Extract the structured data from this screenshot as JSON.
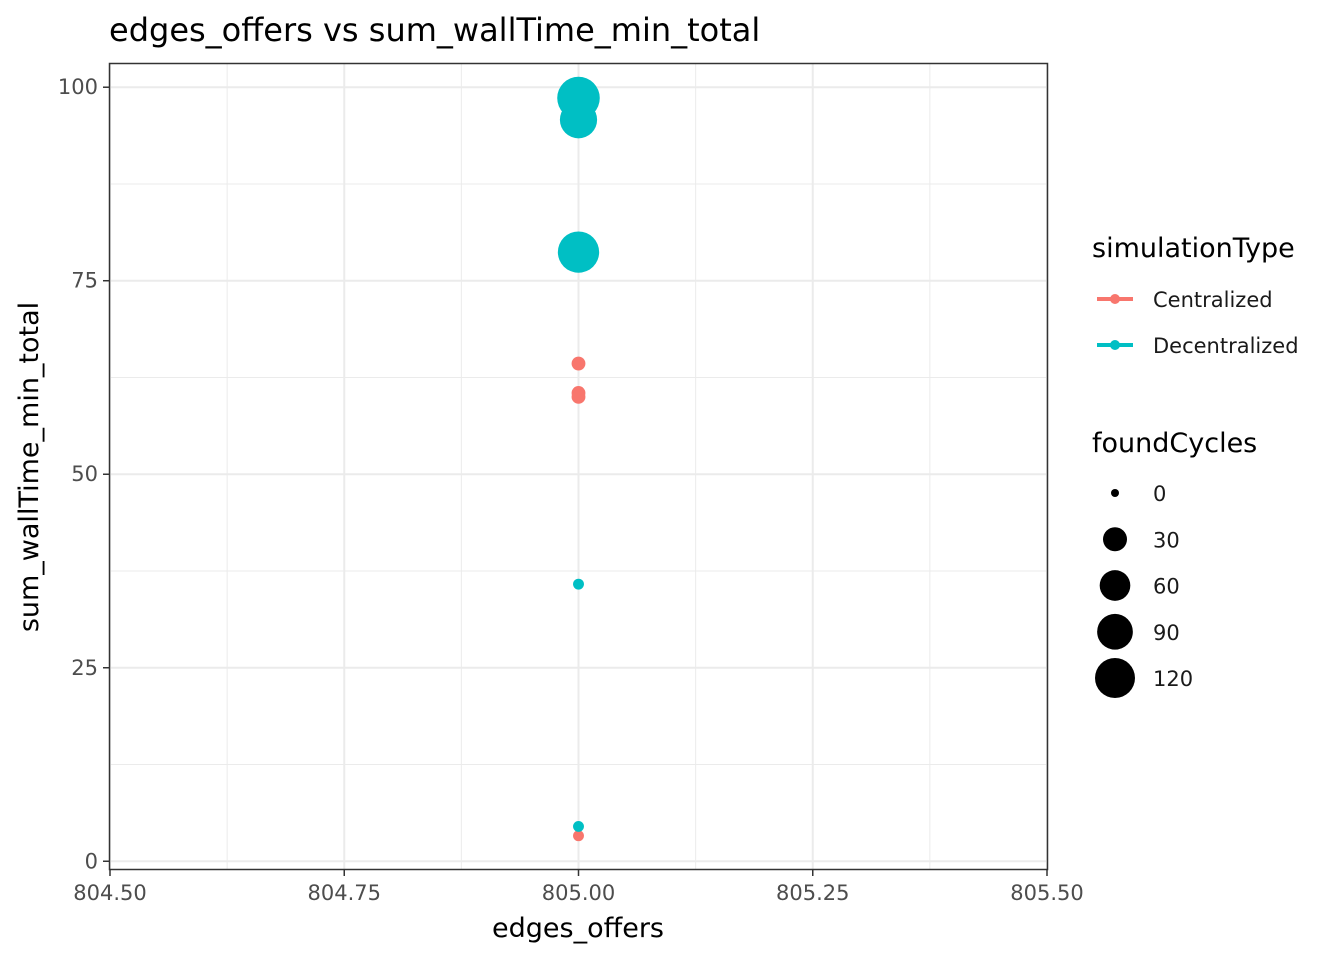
{
  "chart_data": {
    "type": "scatter",
    "title": "edges_offers  vs  sum_wallTime_min_total",
    "xlabel": "edges_offers",
    "ylabel": "sum_wallTime_min_total",
    "xlim": [
      804.5,
      805.5
    ],
    "ylim": [
      -1,
      103
    ],
    "x_ticks": [
      804.5,
      804.75,
      805.0,
      805.25,
      805.5
    ],
    "x_tick_labels": [
      "804.50",
      "804.75",
      "805.00",
      "805.25",
      "805.50"
    ],
    "x_minor": [
      804.625,
      804.875,
      805.125,
      805.375
    ],
    "y_ticks": [
      0,
      25,
      50,
      75,
      100
    ],
    "y_tick_labels": [
      "0",
      "25",
      "50",
      "75",
      "100"
    ],
    "y_minor": [
      12.5,
      37.5,
      62.5,
      87.5
    ],
    "grid": true,
    "legend_placement": "right",
    "color_legend": {
      "title": "simulationType",
      "entries": [
        {
          "name": "Centralized",
          "color": "#F8766D"
        },
        {
          "name": "Decentralized",
          "color": "#00BFC4"
        }
      ]
    },
    "size_legend": {
      "title": "foundCycles",
      "values": [
        0,
        30,
        60,
        90,
        120
      ],
      "labels": [
        "0",
        "30",
        "60",
        "90",
        "120"
      ]
    },
    "series": [
      {
        "name": "Centralized",
        "color": "#F8766D",
        "points": [
          {
            "x": 805.0,
            "y": 64.3,
            "size": 4
          },
          {
            "x": 805.0,
            "y": 60.5,
            "size": 4
          },
          {
            "x": 805.0,
            "y": 60.0,
            "size": 4
          },
          {
            "x": 805.0,
            "y": 3.3,
            "size": 1
          }
        ]
      },
      {
        "name": "Decentralized",
        "color": "#00BFC4",
        "points": [
          {
            "x": 805.0,
            "y": 98.6,
            "size": 140
          },
          {
            "x": 805.0,
            "y": 95.8,
            "size": 100
          },
          {
            "x": 805.0,
            "y": 78.7,
            "size": 130
          },
          {
            "x": 805.0,
            "y": 35.8,
            "size": 1
          },
          {
            "x": 805.0,
            "y": 4.5,
            "size": 1
          }
        ]
      }
    ]
  }
}
